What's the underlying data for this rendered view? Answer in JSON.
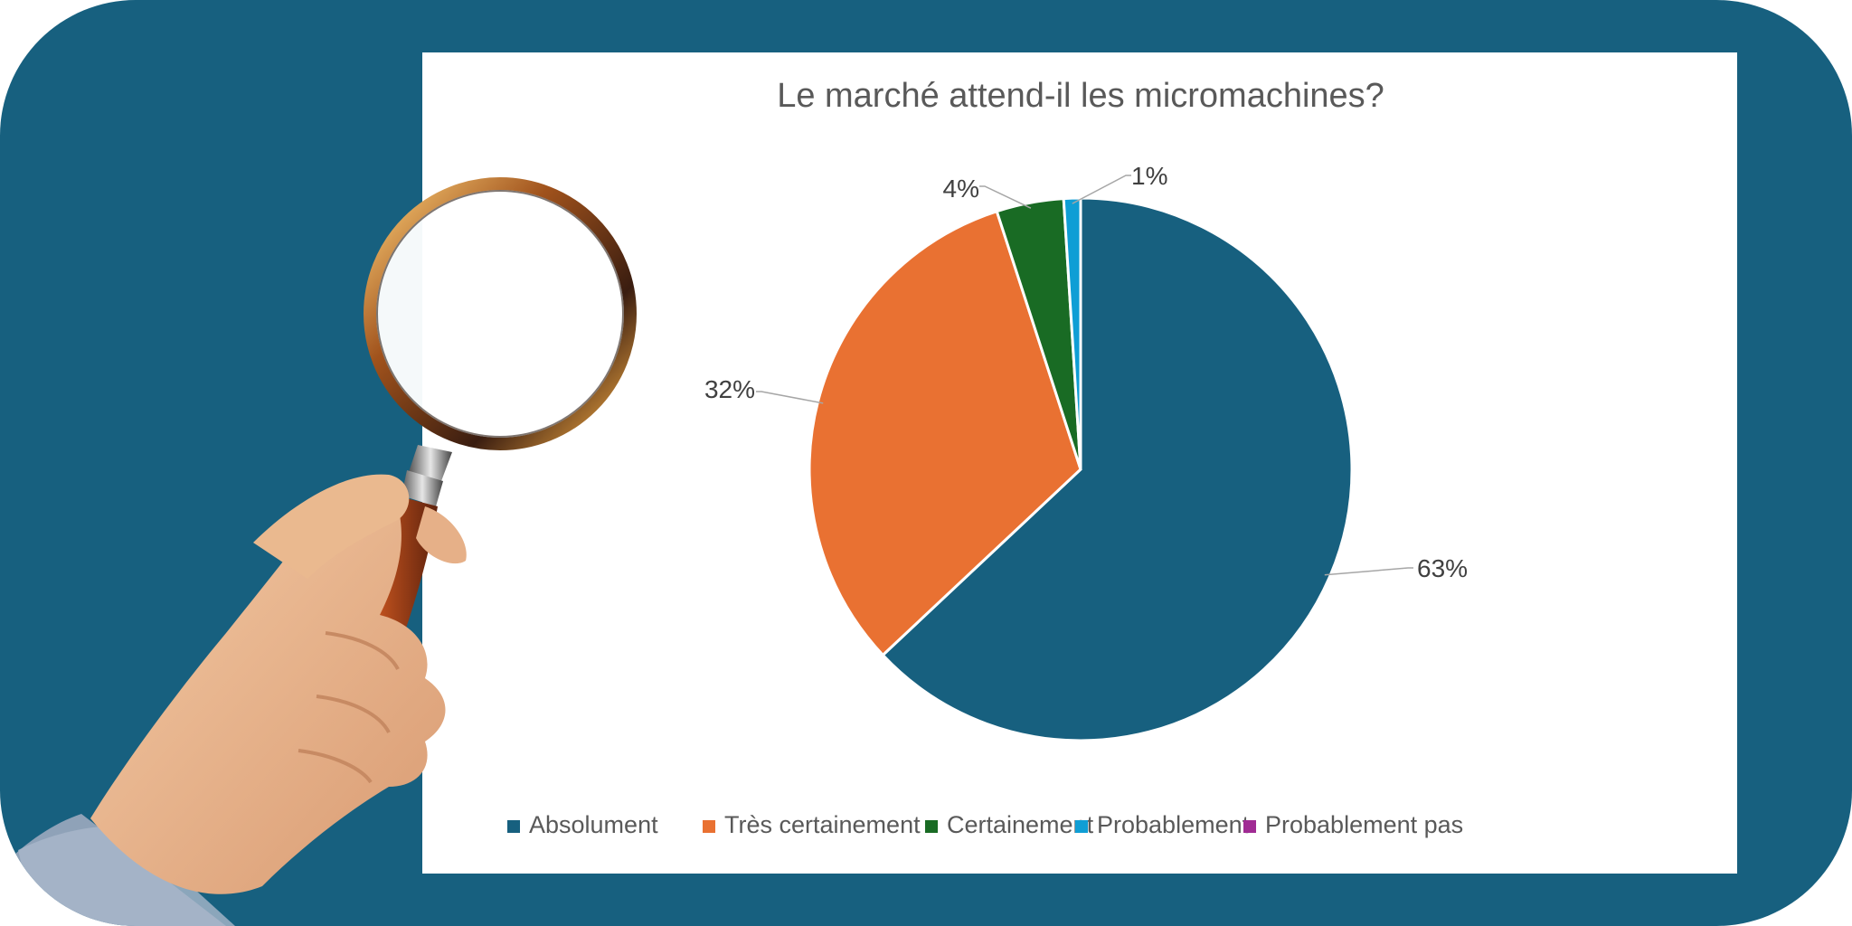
{
  "chart_data": {
    "type": "pie",
    "title": "Le marché attend-il les micromachines?",
    "categories": [
      "Absolument",
      "Très certainement",
      "Certainement",
      "Probablement",
      "Probablement pas"
    ],
    "values": [
      63,
      32,
      4,
      1,
      0
    ],
    "data_labels": [
      "63%",
      "32%",
      "4%",
      "1%",
      ""
    ],
    "colors": [
      "#17607f",
      "#e97132",
      "#196b24",
      "#0f9ed5",
      "#a02b93"
    ],
    "legend_position": "bottom",
    "start_angle": "12 o'clock, clockwise"
  },
  "image": {
    "background_color": "#17607f",
    "illustration": "hand-holding-magnifying-glass"
  }
}
